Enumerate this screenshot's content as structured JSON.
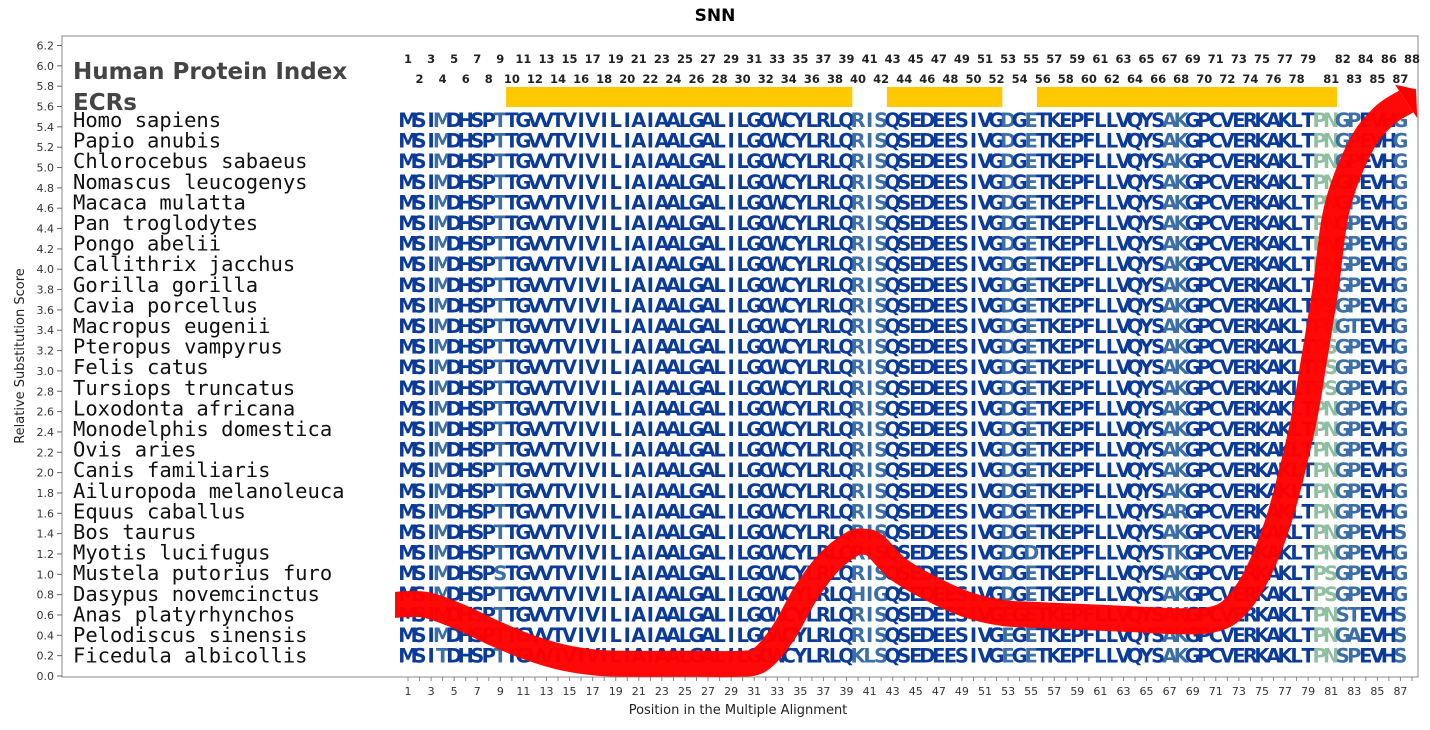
{
  "chart_data": {
    "type": "line",
    "title": "SNN",
    "xlabel": "Position in the Multiple Alignment",
    "ylabel": "Relative Substitution Score",
    "xlim": [
      1,
      88
    ],
    "ylim": [
      0.0,
      6.2
    ],
    "y_ticks": [
      "0.0",
      "0.2",
      "0.4",
      "0.6",
      "0.8",
      "1.0",
      "1.2",
      "1.4",
      "1.6",
      "1.8",
      "2.0",
      "2.2",
      "2.4",
      "2.6",
      "2.8",
      "3.0",
      "3.2",
      "3.4",
      "3.6",
      "3.8",
      "4.0",
      "4.2",
      "4.4",
      "4.6",
      "4.8",
      "5.0",
      "5.2",
      "5.4",
      "5.6",
      "5.8",
      "6.0",
      "6.2"
    ],
    "x_ticks": [
      "1",
      "3",
      "5",
      "7",
      "9",
      "11",
      "13",
      "15",
      "17",
      "19",
      "21",
      "23",
      "25",
      "27",
      "29",
      "31",
      "33",
      "35",
      "37",
      "39",
      "41",
      "43",
      "45",
      "47",
      "49",
      "51",
      "53",
      "55",
      "57",
      "59",
      "61",
      "63",
      "65",
      "67",
      "69",
      "71",
      "73",
      "75",
      "77",
      "79",
      "81",
      "83",
      "85",
      "87"
    ],
    "panel_header": "Human Protein Index",
    "ecr_label": "ECRs",
    "ecr_color": "#ffc800",
    "line_color": "#ff0000",
    "ecrs": [
      [
        10,
        40
      ],
      [
        43,
        53
      ],
      [
        56,
        82
      ]
    ],
    "score_curve": {
      "x": [
        1,
        3,
        6,
        9,
        12,
        15,
        18,
        21,
        24,
        27,
        30,
        32,
        34,
        36,
        38,
        40,
        41,
        42,
        44,
        47,
        50,
        53,
        56,
        60,
        64,
        68,
        71,
        73,
        75,
        77,
        79,
        80,
        81,
        82,
        84,
        86,
        88
      ],
      "y": [
        0.7,
        0.7,
        0.58,
        0.42,
        0.28,
        0.18,
        0.13,
        0.12,
        0.12,
        0.12,
        0.12,
        0.16,
        0.42,
        0.82,
        1.12,
        1.3,
        1.32,
        1.28,
        1.05,
        0.85,
        0.7,
        0.62,
        0.6,
        0.58,
        0.56,
        0.54,
        0.55,
        0.66,
        0.98,
        1.55,
        2.45,
        3.1,
        3.8,
        4.6,
        5.2,
        5.5,
        5.65
      ]
    },
    "column_labels_top": [
      "1",
      "3",
      "5",
      "7",
      "9",
      "11",
      "13",
      "15",
      "17",
      "19",
      "21",
      "23",
      "25",
      "27",
      "29",
      "31",
      "33",
      "35",
      "37",
      "39",
      "41",
      "43",
      "45",
      "47",
      "49",
      "51",
      "53",
      "55",
      "57",
      "59",
      "61",
      "63",
      "65",
      "67",
      "69",
      "71",
      "73",
      "75",
      "77",
      "79",
      "82",
      "84",
      "86",
      "88"
    ],
    "column_labels_bottom": [
      "2",
      "4",
      "6",
      "8",
      "10",
      "12",
      "14",
      "16",
      "18",
      "20",
      "22",
      "24",
      "26",
      "28",
      "30",
      "32",
      "34",
      "36",
      "38",
      "40",
      "42",
      "44",
      "46",
      "48",
      "50",
      "52",
      "54",
      "56",
      "58",
      "60",
      "62",
      "64",
      "66",
      "68",
      "70",
      "72",
      "74",
      "76",
      "78",
      "81",
      "83",
      "85",
      "87"
    ],
    "species": [
      {
        "name": "Homo sapiens",
        "seq": "MSIMDHSPTTGVVTVIVILIAIAALGALILGCWCYLRLQRISQSEDEESIVGDGETKEPFLLVQYSAKGPCVERKAKLTPNGPEVHG"
      },
      {
        "name": "Papio anubis",
        "seq": "MSIMDHSPTTGVVTVIVILIAIAALGALILGCWCYLRLQRISQSEDEESIVGDGETKEPFLLVQYSAKGPCVERKAKLTPNGPEVHG"
      },
      {
        "name": "Chlorocebus sabaeus",
        "seq": "MSIMDHSPTTGVVTVIVILIAIAALGALILGCWCYLRLQRISQSEDEESIVGDGETKEPFLLVQYSAKGPCVERKAKLTPNGPEVHG"
      },
      {
        "name": "Nomascus leucogenys",
        "seq": "MSIMDHSPTTGVVTVIVILIAIAALGALILGCWCYLRLQRISQSEDEESIVGDGETKEPFLLVQYSAKGPCVERKAKLTPNGPEVHG"
      },
      {
        "name": "Macaca mulatta",
        "seq": "MSIMDHSPTTGVVTVIVILIAIAALGALILGCWCYLRLQRISQSEDEESIVGDGETKEPFLLVQYSAKGPCVERKAKLTPNGPEVHG"
      },
      {
        "name": "Pan troglodytes",
        "seq": "MSIMDHSPTTGVVTVIVILIAIAALGALILGCWCYLRLQRISQSEDEESIVGDGETKEPFLLVQYSAKGPCVERKAKLTPNGPEVHG"
      },
      {
        "name": "Pongo abelii",
        "seq": "MSIMDHSPTTGVVTVIVILIAIAALGALILGCWCYLRLQRISQSEDEESIVGDGETKEPFLLVQYSAKGPCVERKAKLTPNGPEVHG"
      },
      {
        "name": "Callithrix jacchus",
        "seq": "MSIMDHSPTTGVVTVIVILIAIAALGALILGCWCYLRLQRISQSEDEESIVGDGETKEPFLLVQYSAKGPCVERKAKLTPNGPEVHG"
      },
      {
        "name": "Gorilla gorilla",
        "seq": "MSIMDHSPTTGVVTVIVILIAIAALGALILGCWCYLRLQRISQSEDEESIVGDGETKEPFLLVQYSAKGPCVERKAKLTPNGPEVHG"
      },
      {
        "name": "Cavia porcellus",
        "seq": "MSIMDHSPTTGVVTVIVILIAIAALGALILGCWCYLRLQRISQSEDEESIVGDGETKEPFLLVQYSAKGPCVERKAKLTPSGPEVHG"
      },
      {
        "name": "Macropus eugenii",
        "seq": "MSIMDHSPTTGVVTVIVILIAIAALGALILGCWCYLRLQRISQSEDEESIVGDGETKEPFLLVQYSAKGPCVERKAKLTPNGTEVHG"
      },
      {
        "name": "Pteropus vampyrus",
        "seq": "MSIMDHSPTTGVVTVIVILIAIAALGALILGCWCYLRLQRISQSEDEESIVGDGETKEPFLLVQYSAKGPCVERKAKLTPSGPEVHG"
      },
      {
        "name": "Felis catus",
        "seq": "MSIMDHSPTTGVVTVIVILIAIAALGALILGCWCYLRLQRISQSEDEESIVGDGETKEPFLLVQYSAKGPCVERKAKLTPSGPEVHG"
      },
      {
        "name": "Tursiops truncatus",
        "seq": "MSIMDHSPTTGVVTVIVILIAIAALGALILGCWCYLRLQRISQSEDEESIVGDGETKEPFLLVQYSAKGPCVERKAKLTPSGPEVHG"
      },
      {
        "name": "Loxodonta africana",
        "seq": "MSIMDHSPTTGVVTVIVILIAIAALGALILGCWCYLRLQRISQSEDEESIVGDGETKEPFLLVQYSAKGPCVERKAKLTPNGPEVHG"
      },
      {
        "name": "Monodelphis domestica",
        "seq": "MSIMDHSPTTGVVTVIVILIAIAALGALILGCWCYLRLQRISQSEDEESIVGDGETKEPFLLVQYSAKGPCVERKAKLTPNGPEVHG"
      },
      {
        "name": "Ovis aries",
        "seq": "MSIMDHSPTTGVVTVIVILIAIAALGALILGCWCYLRLQRISQSEDEESIVGDGETKEPFLLVQYSAKGPCVERKAKLTPNGPEVHG"
      },
      {
        "name": "Canis familiaris",
        "seq": "MSIMDHSPTTGVVTVIVILIAIAALGALILGCWCYLRLQRISQSEDEESIVGDGETKEPFLLVQYSAKGPCVERKAKLTPNGPEVHG"
      },
      {
        "name": "Ailuropoda melanoleuca",
        "seq": "MSIMDHSPTTGVVTVIVILIAIAALGALILGCWCYLRLQRISQSEDEESIVGDGETKEPFLLVQYSAKGPCVERKAKLTPNGPEVHG"
      },
      {
        "name": "Equus caballus",
        "seq": "MSIMDHSPTTGVVTVIVILIAIAALGALILGCWCYLRLQRISQSEDEESIVGDGETKEPFLLVQYSARGPCVERKAKLTPNGPEVHG"
      },
      {
        "name": "Bos taurus",
        "seq": "MSIMDHSPTTGVVTVIVILIAIAALGALILGCWCYLRLQRISQSEDEESIVGDGETKEPFLLVQYSAKGPCVERKAKLTPNGPEVHS"
      },
      {
        "name": "Myotis lucifugus",
        "seq": "MSIMDHSPTTGVVTVIVILIAIAALGALILGCWCYLRLQRISQSEDEESIVGDGDTKEPFLLVQYSTKGPCVERKAKLTPNGPEVHG"
      },
      {
        "name": "Mustela putorius furo",
        "seq": "MSIMDHSPSTGVVTVIVILIAIAALGALILGCWCYLRLQRISQSEDEESIVGDGETKEPFLLVQYSAKGPCVERKAKLTPSGPEVHG"
      },
      {
        "name": "Dasypus novemcinctus",
        "seq": "MSIMDHSPTTGVVTVIVILIAIAALGALILGCWCYLRLQHIGQSEDEESIVGDGETKEPFLLVQYSAKGPCVERKAKLTPSGPEVHG"
      },
      {
        "name": "Anas platyrhynchos",
        "seq": "MSIMDHSPTTGVVTVIVILIAIAALGALILGCWCYLRLQRISQSEDEESIVGEGETKEPFLLVQYSAKGPCVERKAKLTPNSTEVHS"
      },
      {
        "name": "Pelodiscus sinensis",
        "seq": "MSIMDHSPTTGVVTVIVILIAIAALGALILGCWCYLRLQRISQSEDEESIVGEGETKEPFLLVQYSAKGPCVERKAKLTPNGAEVHS"
      },
      {
        "name": "Ficedula albicollis",
        "seq": "MSITDHSPTTGVVTVIVILIAIAALGALILGCWCYLRLQKLSQSEDEESIVGEGETKEPFLLVQYSAKGPCVERKAKLTPNSPEVHS"
      }
    ],
    "residue_colors": {
      "conserved": "#0a3a9a",
      "variable": "#3c6fa8",
      "divergent": "#8fbfa0"
    },
    "grid": false,
    "legend": "none"
  }
}
